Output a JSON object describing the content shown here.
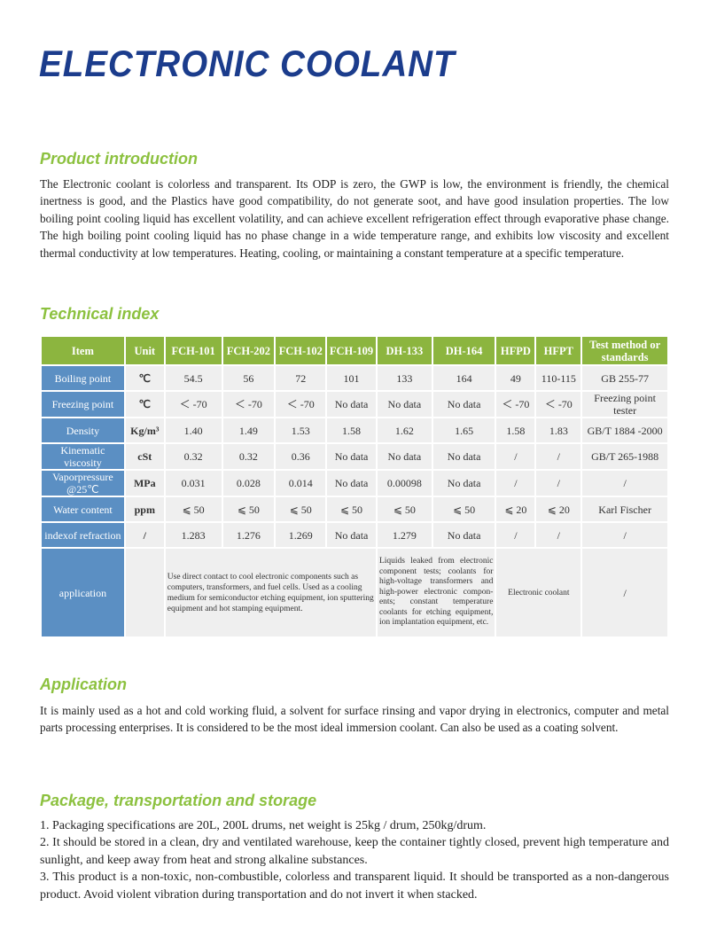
{
  "title": "ELECTRONIC COOLANT",
  "intro": {
    "heading": "Product introduction",
    "text": "The Electronic coolant is colorless and transparent. Its ODP is zero, the GWP is low, the environment is friendly, the chemical inertness is good, and the Plastics have good compatibility, do not generate soot, and have good insulation properties. The low boiling point cooling liquid has excellent volatility, and can achieve excellent refrigeration effect through evaporative phase change. The high boiling point cooling liquid has no phase change in a wide temperature range, and exhibits low viscosity and excellent thermal conductivity at low temperatures. Heating, cooling, or maintaining a constant temperature at a specific temperature."
  },
  "technical": {
    "heading": "Technical index",
    "headers": [
      "Item",
      "Unit",
      "FCH-101",
      "FCH-202",
      "FCH-102",
      "FCH-109",
      "DH-133",
      "DH-164",
      "HFPD",
      "HFPT",
      "Test method or standards"
    ],
    "rows": [
      [
        "Boiling point",
        "℃",
        "54.5",
        "56",
        "72",
        "101",
        "133",
        "164",
        "49",
        "110-115",
        "GB 255-77"
      ],
      [
        "Freezing point",
        "℃",
        "＜ -70",
        "＜ -70",
        "＜ -70",
        "No data",
        "No data",
        "No data",
        "＜ -70",
        "＜ -70",
        "Freezing point tester"
      ],
      [
        "Density",
        "Kg/m³",
        "1.40",
        "1.49",
        "1.53",
        "1.58",
        "1.62",
        "1.65",
        "1.58",
        "1.83",
        "GB/T 1884 -2000"
      ],
      [
        "Kinematic viscosity",
        "cSt",
        "0.32",
        "0.32",
        "0.36",
        "No data",
        "No data",
        "No data",
        "/",
        "/",
        "GB/T 265-1988"
      ],
      [
        "Vaporpressure @25℃",
        "MPa",
        "0.031",
        "0.028",
        "0.014",
        "No data",
        "0.00098",
        "No data",
        "/",
        "/",
        "/"
      ],
      [
        "Water content",
        "ppm",
        "⩽ 50",
        "⩽ 50",
        "⩽ 50",
        "⩽ 50",
        "⩽ 50",
        "⩽ 50",
        "⩽ 20",
        "⩽ 20",
        "Karl Fischer"
      ],
      [
        "indexof refraction",
        "/",
        "1.283",
        "1.276",
        "1.269",
        "No data",
        "1.279",
        "No data",
        "/",
        "/",
        "/"
      ]
    ],
    "application": {
      "label": "application",
      "unit": "",
      "fch": "Use direct contact to cool electronic components such as computers, transformers, and fuel cells. Used as a cooling medium for semiconductor etching equipment, ion sputtering equipment and hot stamping equipment.",
      "dh": "Liquids leaked from electronic component tests; coolants for high-voltage transformers and high-power electronic compon-ents; constant temperature coolants for etching equipment, ion implantation equipment, etc.",
      "hf": "Electronic coolant",
      "test": "/"
    }
  },
  "application": {
    "heading": "Application",
    "text": "It is mainly used as a hot and cold working fluid, a solvent for surface rinsing and vapor drying in electronics, computer and metal parts processing enterprises. It is considered to be the most ideal immersion coolant. Can also be used as a coating solvent."
  },
  "package": {
    "heading": "Package, transportation and storage",
    "items": [
      "1. Packaging specifications are 20L, 200L drums, net weight is 25kg / drum, 250kg/drum.",
      "2. It should be stored in a clean, dry and ventilated warehouse, keep the container tightly closed, prevent high temperature and sunlight, and keep away from heat and strong alkaline substances.",
      "3. This product is a non-toxic, non-combustible, colorless and transparent liquid. It should be transported as a non-dangerous product. Avoid violent vibration during transportation and do not invert it when stacked."
    ]
  }
}
